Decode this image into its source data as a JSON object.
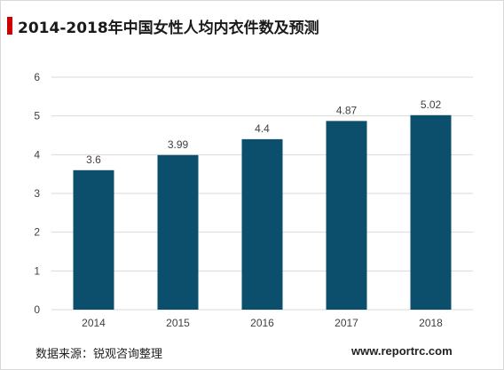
{
  "title": "2014-2018年中国女性人均内衣件数及预测",
  "source": "数据来源：锐观咨询整理",
  "website": "www.reportrc.com",
  "colors": {
    "bar": "#0b4f6c",
    "title_accent": "#cc0000",
    "grid": "#d9d9d9"
  },
  "chart_data": {
    "type": "bar",
    "title": "2014-2018年中国女性人均内衣件数及预测",
    "categories": [
      "2014",
      "2015",
      "2016",
      "2017",
      "2018"
    ],
    "values": [
      3.6,
      3.99,
      4.4,
      4.87,
      5.02
    ],
    "data_labels": [
      "3.6",
      "3.99",
      "4.4",
      "4.87",
      "5.02"
    ],
    "ylim": [
      0,
      6
    ],
    "yticks": [
      0,
      1,
      2,
      3,
      4,
      5,
      6
    ],
    "grid": true,
    "legend": "none"
  }
}
